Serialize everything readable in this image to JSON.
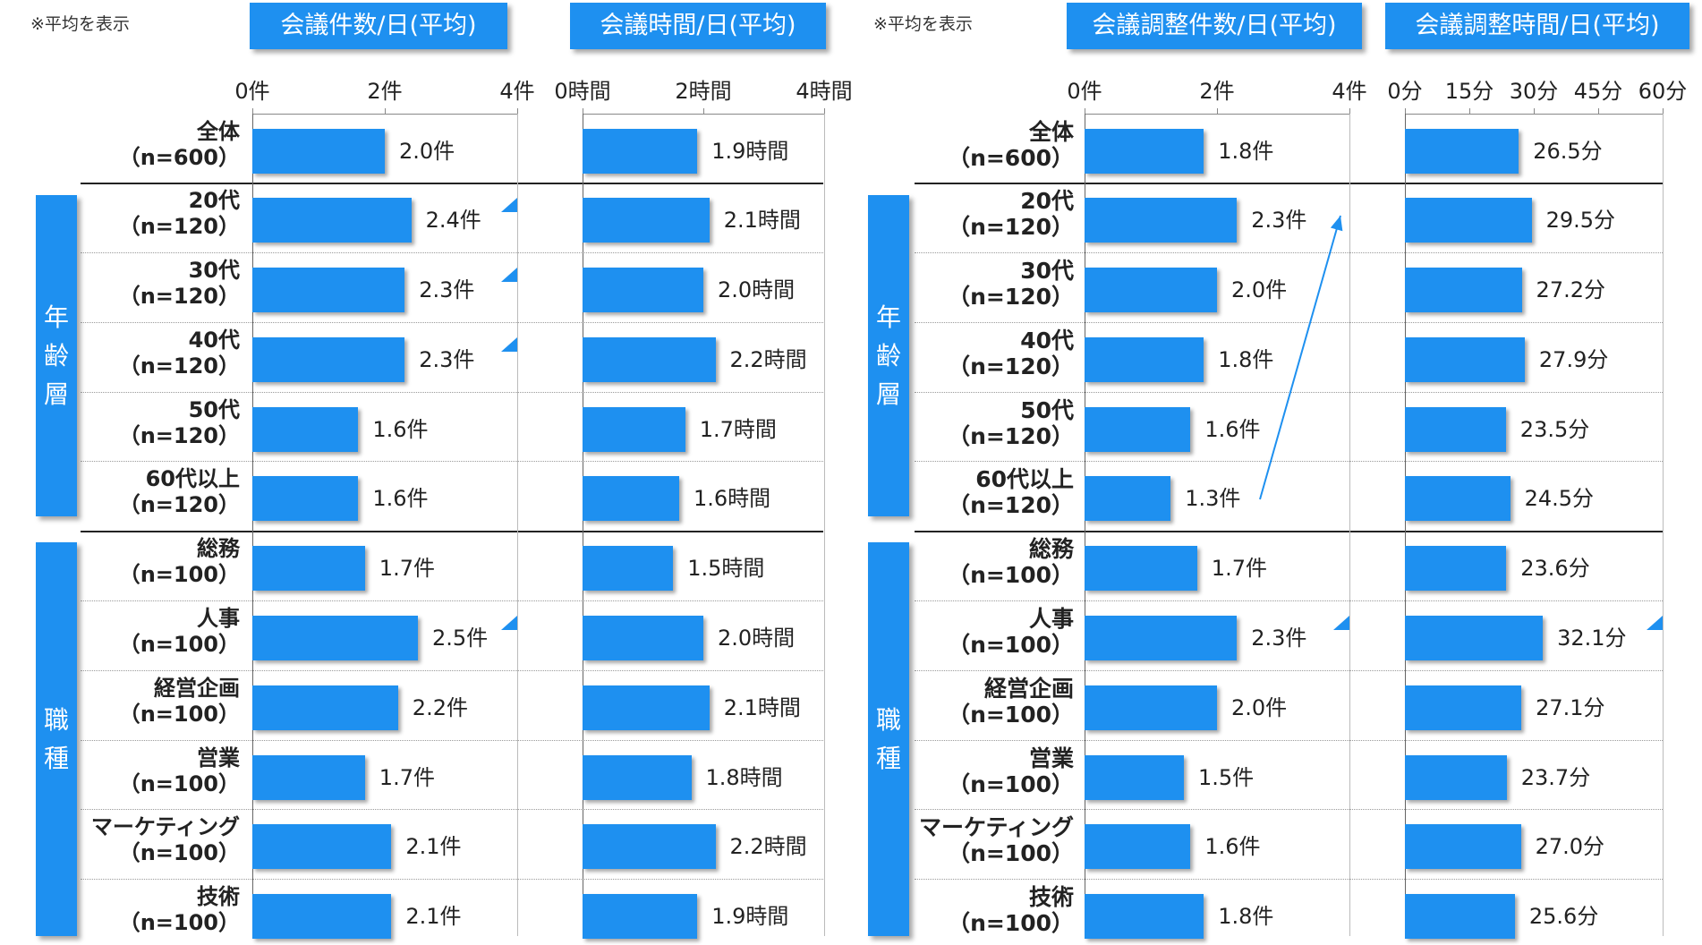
{
  "notes": {
    "left": "※平均を表示",
    "right": "※平均を表示"
  },
  "groups": {
    "age": "年齢層",
    "job": "職種"
  },
  "rows": [
    {
      "name": "全体",
      "n": "（n=600）"
    },
    {
      "name": "20代",
      "n": "（n=120）"
    },
    {
      "name": "30代",
      "n": "（n=120）"
    },
    {
      "name": "40代",
      "n": "（n=120）"
    },
    {
      "name": "50代",
      "n": "（n=120）"
    },
    {
      "name": "60代以上",
      "n": "（n=120）"
    },
    {
      "name": "総務",
      "n": "（n=100）"
    },
    {
      "name": "人事",
      "n": "（n=100）"
    },
    {
      "name": "経営企画",
      "n": "（n=100）"
    },
    {
      "name": "営業",
      "n": "（n=100）"
    },
    {
      "name": "マーケティング",
      "n": "（n=100）"
    },
    {
      "name": "技術",
      "n": "（n=100）"
    }
  ],
  "chart_data": [
    {
      "type": "bar",
      "title": "会議件数/日(平均)",
      "categories": [
        "全体（n=600）",
        "20代（n=120）",
        "30代（n=120）",
        "40代（n=120）",
        "50代（n=120）",
        "60代以上（n=120）",
        "総務（n=100）",
        "人事（n=100）",
        "経営企画（n=100）",
        "営業（n=100）",
        "マーケティング（n=100）",
        "技術（n=100）"
      ],
      "values": [
        2.0,
        2.4,
        2.3,
        2.3,
        1.6,
        1.6,
        1.7,
        2.5,
        2.2,
        1.7,
        2.1,
        2.1
      ],
      "labels": [
        "2.0件",
        "2.4件",
        "2.3件",
        "2.3件",
        "1.6件",
        "1.6件",
        "1.7件",
        "2.5件",
        "2.2件",
        "1.7件",
        "2.1件",
        "2.1件"
      ],
      "ticks": [
        "0件",
        "2件",
        "4件"
      ],
      "xlim": [
        0,
        4
      ],
      "highlight_rows": [
        1,
        2,
        3,
        7
      ]
    },
    {
      "type": "bar",
      "title": "会議時間/日(平均)",
      "categories": [
        "全体（n=600）",
        "20代（n=120）",
        "30代（n=120）",
        "40代（n=120）",
        "50代（n=120）",
        "60代以上（n=120）",
        "総務（n=100）",
        "人事（n=100）",
        "経営企画（n=100）",
        "営業（n=100）",
        "マーケティング（n=100）",
        "技術（n=100）"
      ],
      "values": [
        1.9,
        2.1,
        2.0,
        2.2,
        1.7,
        1.6,
        1.5,
        2.0,
        2.1,
        1.8,
        2.2,
        1.9
      ],
      "labels": [
        "1.9時間",
        "2.1時間",
        "2.0時間",
        "2.2時間",
        "1.7時間",
        "1.6時間",
        "1.5時間",
        "2.0時間",
        "2.1時間",
        "1.8時間",
        "2.2時間",
        "1.9時間"
      ],
      "ticks": [
        "0時間",
        "2時間",
        "4時間"
      ],
      "xlim": [
        0,
        4
      ],
      "highlight_rows": []
    },
    {
      "type": "bar",
      "title": "会議調整件数/日(平均)",
      "categories": [
        "全体（n=600）",
        "20代（n=120）",
        "30代（n=120）",
        "40代（n=120）",
        "50代（n=120）",
        "60代以上（n=120）",
        "総務（n=100）",
        "人事（n=100）",
        "経営企画（n=100）",
        "営業（n=100）",
        "マーケティング（n=100）",
        "技術（n=100）"
      ],
      "values": [
        1.8,
        2.3,
        2.0,
        1.8,
        1.6,
        1.3,
        1.7,
        2.3,
        2.0,
        1.5,
        1.6,
        1.8
      ],
      "labels": [
        "1.8件",
        "2.3件",
        "2.0件",
        "1.8件",
        "1.6件",
        "1.3件",
        "1.7件",
        "2.3件",
        "2.0件",
        "1.5件",
        "1.6件",
        "1.8件"
      ],
      "ticks": [
        "0件",
        "2件",
        "4件"
      ],
      "xlim": [
        0,
        4
      ],
      "highlight_rows": [
        7
      ],
      "trend_arrow": {
        "from_row": 5,
        "to_row": 1
      }
    },
    {
      "type": "bar",
      "title": "会議調整時間/日(平均)",
      "categories": [
        "全体（n=600）",
        "20代（n=120）",
        "30代（n=120）",
        "40代（n=120）",
        "50代（n=120）",
        "60代以上（n=120）",
        "総務（n=100）",
        "人事（n=100）",
        "経営企画（n=100）",
        "営業（n=100）",
        "マーケティング（n=100）",
        "技術（n=100）"
      ],
      "values": [
        26.5,
        29.5,
        27.2,
        27.9,
        23.5,
        24.5,
        23.6,
        32.1,
        27.1,
        23.7,
        27.0,
        25.6
      ],
      "labels": [
        "26.5分",
        "29.5分",
        "27.2分",
        "27.9分",
        "23.5分",
        "24.5分",
        "23.6分",
        "32.1分",
        "27.1分",
        "23.7分",
        "27.0分",
        "25.6分"
      ],
      "ticks": [
        "0分",
        "15分",
        "30分",
        "45分",
        "60分"
      ],
      "xlim": [
        0,
        60
      ],
      "highlight_rows": [
        7
      ]
    }
  ],
  "colors": {
    "bar": "#1e90f0",
    "header": "#1e90f0",
    "divider": "#222222",
    "dotted": "#9a9a9a"
  }
}
